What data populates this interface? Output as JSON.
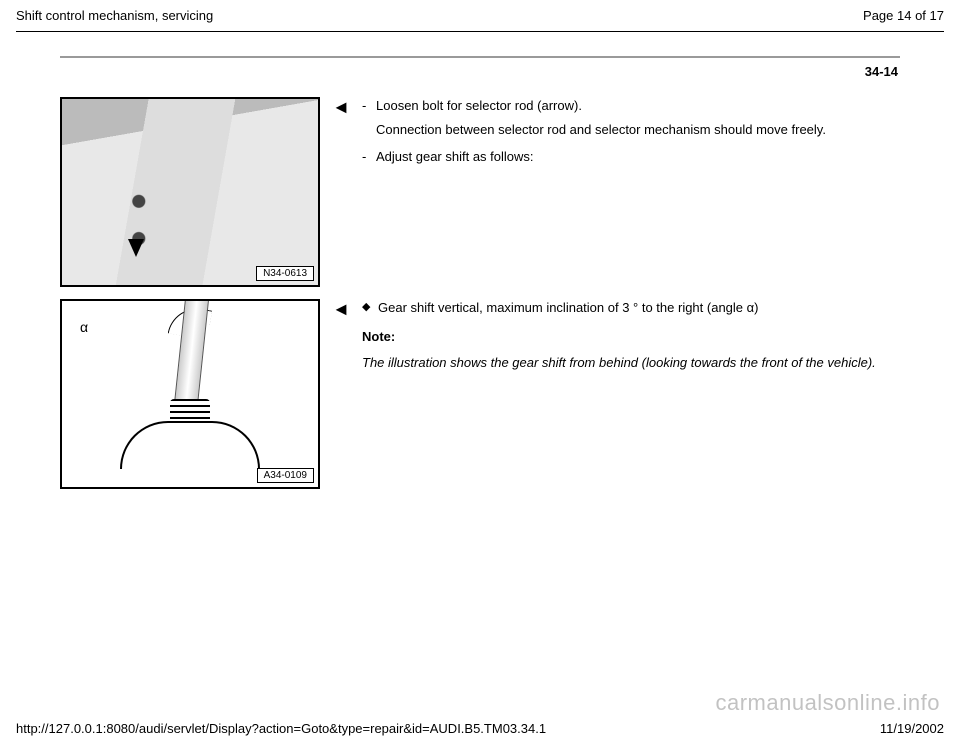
{
  "header": {
    "title": "Shift control mechanism, servicing",
    "page_label": "Page 14 of 17"
  },
  "section_number": "34-14",
  "block1": {
    "arrow": "◄",
    "step1": "Loosen bolt for selector rod (arrow).",
    "step1_note": "Connection between selector rod and selector mechanism should move freely.",
    "step2": "Adjust gear shift as follows:",
    "fig_label": "N34-0613"
  },
  "block2": {
    "arrow": "◄",
    "bullet1": "Gear shift vertical, maximum inclination of 3 ° to the right (angle  α)",
    "note_label": "Note:",
    "note_text": "The illustration shows the gear shift from behind (looking towards the front of the vehicle).",
    "fig_label": "A34-0109",
    "alpha": "α"
  },
  "footer": {
    "url": "http://127.0.0.1:8080/audi/servlet/Display?action=Goto&type=repair&id=AUDI.B5.TM03.34.1",
    "date": "11/19/2002"
  },
  "watermark": "carmanualsonline.info"
}
